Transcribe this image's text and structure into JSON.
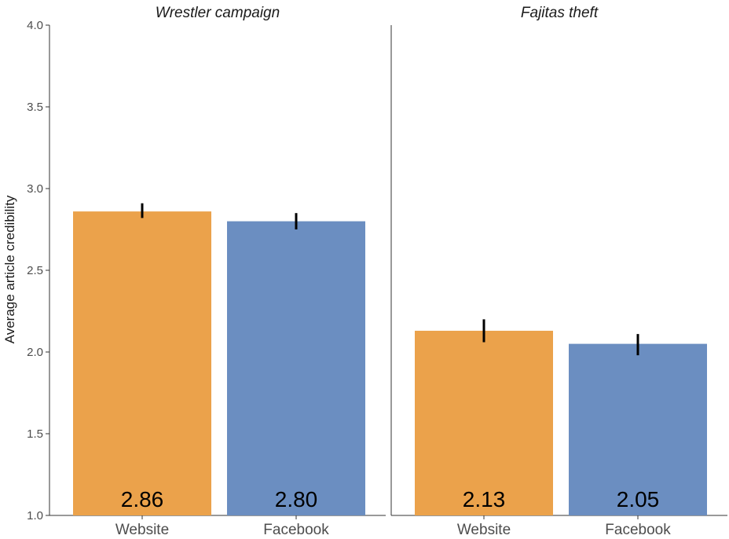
{
  "chart_data": {
    "type": "bar",
    "ylabel": "Average article credibility",
    "ylim": [
      1.0,
      4.0
    ],
    "yticks": [
      "1.0",
      "1.5",
      "2.0",
      "2.5",
      "3.0",
      "3.5",
      "4.0"
    ],
    "categories": [
      "Website",
      "Facebook"
    ],
    "colors": {
      "Website": "#eba24b",
      "Facebook": "#6b8ec1"
    },
    "panels": [
      {
        "title": "Wrestler campaign",
        "bars": [
          {
            "category": "Website",
            "value": 2.86,
            "label": "2.86",
            "error_low": 2.82,
            "error_high": 2.91
          },
          {
            "category": "Facebook",
            "value": 2.8,
            "label": "2.80",
            "error_low": 2.75,
            "error_high": 2.85
          }
        ]
      },
      {
        "title": "Fajitas theft",
        "bars": [
          {
            "category": "Website",
            "value": 2.13,
            "label": "2.13",
            "error_low": 2.06,
            "error_high": 2.2
          },
          {
            "category": "Facebook",
            "value": 2.05,
            "label": "2.05",
            "error_low": 1.98,
            "error_high": 2.11
          }
        ]
      }
    ]
  }
}
